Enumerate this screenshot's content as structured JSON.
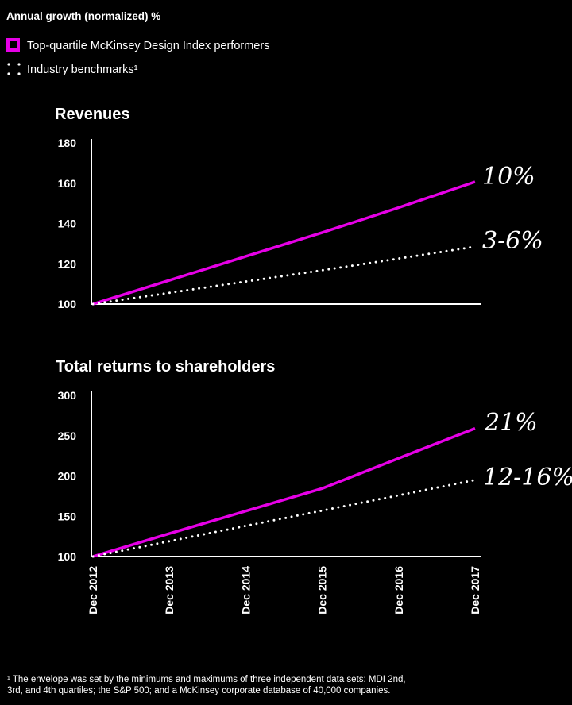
{
  "header": {
    "title": "Annual growth (normalized) %",
    "legend": [
      {
        "label": "Top-quartile McKinsey Design Index performers",
        "style": "solid",
        "color": "#e600e6"
      },
      {
        "label": "Industry benchmarks¹",
        "style": "dotted",
        "color": "#ffffff"
      }
    ]
  },
  "chart_data": [
    {
      "type": "line",
      "title": "Revenues",
      "x": [
        "Dec 2012",
        "Dec 2013",
        "Dec 2014",
        "Dec 2015",
        "Dec 2016",
        "Dec 2017"
      ],
      "ylim": [
        100,
        180
      ],
      "yticks": [
        100,
        120,
        140,
        160,
        180
      ],
      "series": [
        {
          "values": [
            100,
            111.8,
            123.7,
            135.5,
            147.9,
            160.7
          ],
          "color": "#e600e6",
          "style": "solid"
        },
        {
          "values": [
            100,
            105.6,
            111.2,
            116.8,
            122.6,
            128.5
          ],
          "color": "#ffffff",
          "style": "dotted"
        }
      ],
      "annotations": [
        "10%",
        "3-6%"
      ]
    },
    {
      "type": "line",
      "title": "Total returns to shareholders",
      "x": [
        "Dec 2012",
        "Dec 2013",
        "Dec 2014",
        "Dec 2015",
        "Dec 2016",
        "Dec 2017"
      ],
      "ylim": [
        100,
        300
      ],
      "yticks": [
        100,
        150,
        200,
        250,
        300
      ],
      "series": [
        {
          "values": [
            100,
            128.5,
            156.5,
            184.5,
            222,
            259
          ],
          "color": "#e600e6",
          "style": "solid"
        },
        {
          "values": [
            100,
            119,
            138,
            157,
            176,
            195
          ],
          "color": "#ffffff",
          "style": "dotted"
        }
      ],
      "annotations": [
        "21%",
        "12-16%"
      ]
    }
  ],
  "footnote": [
    "¹ The envelope was set by the minimums and maximums of three independent data sets: MDI 2nd,",
    "3rd, and 4th quartiles; the S&P 500; and a McKinsey corporate database of 40,000 companies."
  ]
}
